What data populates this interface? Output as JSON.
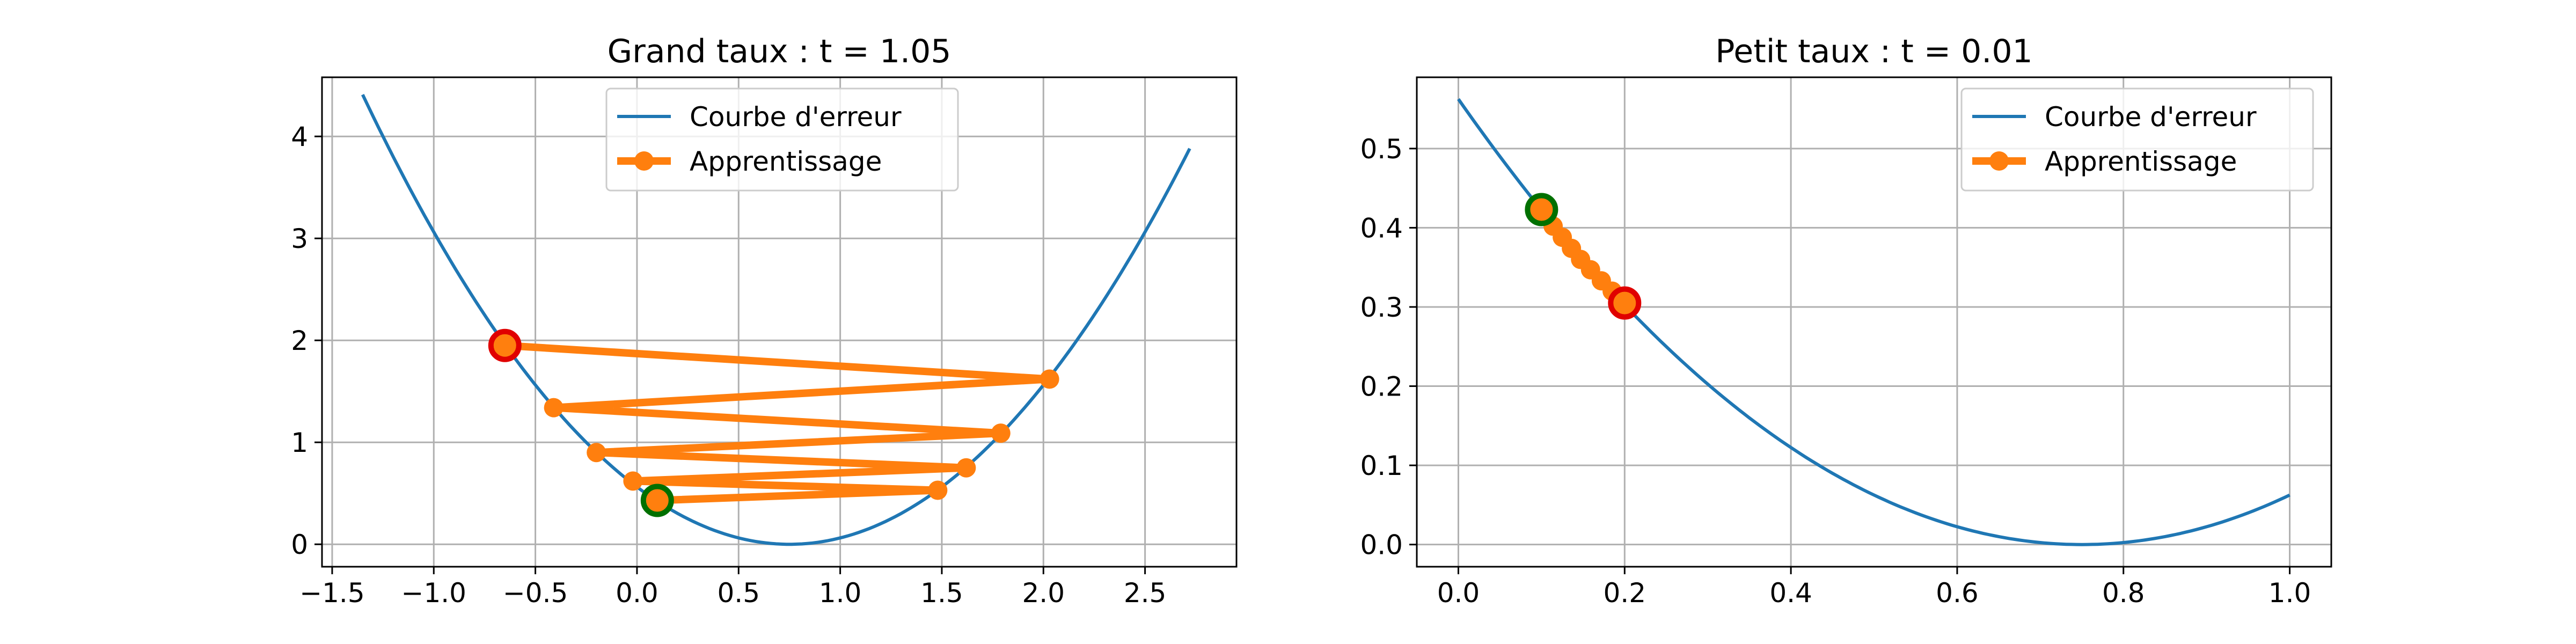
{
  "colors": {
    "curve": "#1f77b4",
    "learning": "#ff7f0e",
    "grid": "#b0b0b0",
    "start_marker_fill": "#ff7f0e",
    "start_marker_edge": "#e00000",
    "end_marker_fill": "#ff7f0e",
    "end_marker_edge": "#007000"
  },
  "chart_data": [
    {
      "type": "line",
      "title": "Grand taux : t = 1.05",
      "xlabel": "",
      "ylabel": "",
      "xlim": [
        -1.55,
        2.95
      ],
      "ylim": [
        -0.22,
        4.58
      ],
      "xticks": [
        -1.5,
        -1.0,
        -0.5,
        0.0,
        0.5,
        1.0,
        1.5,
        2.0,
        2.5
      ],
      "xtick_labels": [
        "−1.5",
        "−1.0",
        "−0.5",
        "0.0",
        "0.5",
        "1.0",
        "1.5",
        "2.0",
        "2.5"
      ],
      "yticks": [
        0,
        1,
        2,
        3,
        4
      ],
      "ytick_labels": [
        "0",
        "1",
        "2",
        "3",
        "4"
      ],
      "grid": true,
      "legend": {
        "placement": "upper center",
        "entries": [
          "Courbe d'erreur",
          "Apprentissage"
        ]
      },
      "series": [
        {
          "name": "Courbe d'erreur",
          "kind": "curve",
          "formula": "(x - 0.75)^2",
          "x_range": [
            -1.35,
            2.72
          ]
        },
        {
          "name": "Apprentissage",
          "kind": "path",
          "points": [
            [
              -0.65,
              1.95
            ],
            [
              2.03,
              1.62
            ],
            [
              -0.41,
              1.34
            ],
            [
              1.79,
              1.09
            ],
            [
              -0.2,
              0.9
            ],
            [
              1.62,
              0.75
            ],
            [
              -0.02,
              0.62
            ],
            [
              1.48,
              0.53
            ],
            [
              0.1,
              0.43
            ]
          ]
        }
      ],
      "start_point": [
        -0.65,
        1.95
      ],
      "end_point": [
        0.1,
        0.43
      ]
    },
    {
      "type": "line",
      "title": "Petit taux : t = 0.01",
      "xlabel": "",
      "ylabel": "",
      "xlim": [
        -0.05,
        1.05
      ],
      "ylim": [
        -0.028,
        0.59
      ],
      "xticks": [
        0.0,
        0.2,
        0.4,
        0.6,
        0.8,
        1.0
      ],
      "xtick_labels": [
        "0.0",
        "0.2",
        "0.4",
        "0.6",
        "0.8",
        "1.0"
      ],
      "yticks": [
        0.0,
        0.1,
        0.2,
        0.3,
        0.4,
        0.5
      ],
      "ytick_labels": [
        "0.0",
        "0.1",
        "0.2",
        "0.3",
        "0.4",
        "0.5"
      ],
      "grid": true,
      "legend": {
        "placement": "upper right",
        "entries": [
          "Courbe d'erreur",
          "Apprentissage"
        ]
      },
      "series": [
        {
          "name": "Courbe d'erreur",
          "kind": "curve",
          "formula": "(x - 0.75)^2",
          "x_range": [
            0.0,
            1.0
          ]
        },
        {
          "name": "Apprentissage",
          "kind": "path",
          "points": [
            [
              0.2,
              0.305
            ],
            [
              0.185,
              0.32
            ],
            [
              0.172,
              0.333
            ],
            [
              0.159,
              0.347
            ],
            [
              0.147,
              0.36
            ],
            [
              0.136,
              0.374
            ],
            [
              0.125,
              0.388
            ],
            [
              0.114,
              0.402
            ],
            [
              0.104,
              0.415
            ],
            [
              0.1,
              0.423
            ]
          ]
        }
      ],
      "start_point": [
        0.2,
        0.305
      ],
      "end_point": [
        0.1,
        0.423
      ]
    }
  ]
}
